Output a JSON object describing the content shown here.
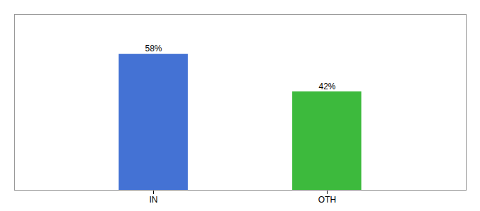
{
  "chart_data": {
    "type": "bar",
    "categories": [
      "IN",
      "OTH"
    ],
    "values": [
      58,
      42
    ],
    "value_labels": [
      "58%",
      "42%"
    ],
    "colors": [
      "#4472d4",
      "#3dba3d"
    ],
    "ylim": [
      0,
      75
    ],
    "data_labels": true,
    "tick_labels": "x",
    "grid": false
  }
}
